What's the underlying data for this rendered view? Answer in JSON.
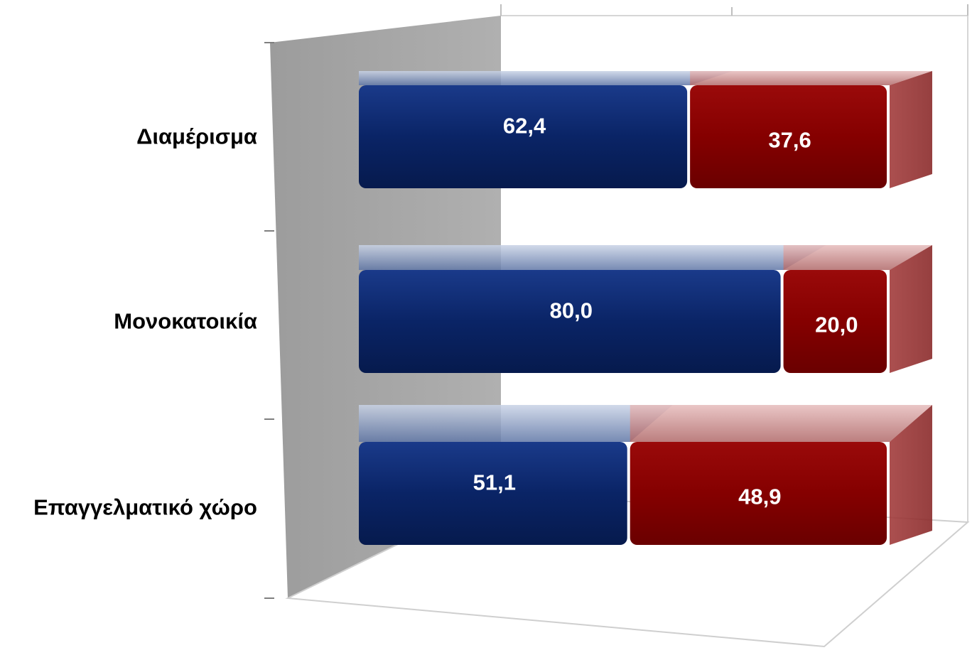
{
  "chart_data": {
    "type": "bar",
    "orientation": "horizontal",
    "stacked": true,
    "percent_stacked": true,
    "three_d": true,
    "title": "",
    "xlabel": "",
    "ylabel": "",
    "xlim": [
      0,
      100
    ],
    "grid": true,
    "legend": "none",
    "categories": [
      "Διαμέρισμα",
      "Μονοκατοικία",
      "Επαγγελματικό χώρο"
    ],
    "series": [
      {
        "color": "#0a2466",
        "values": [
          62.4,
          80.0,
          51.1
        ],
        "labels": [
          "62,4",
          "80,0",
          "51,1"
        ]
      },
      {
        "color": "#8b0000",
        "values": [
          37.6,
          20.0,
          48.9
        ],
        "labels": [
          "37,6",
          "20,0",
          "48,9"
        ]
      }
    ],
    "side_wall_color": "#a6a6a6"
  }
}
